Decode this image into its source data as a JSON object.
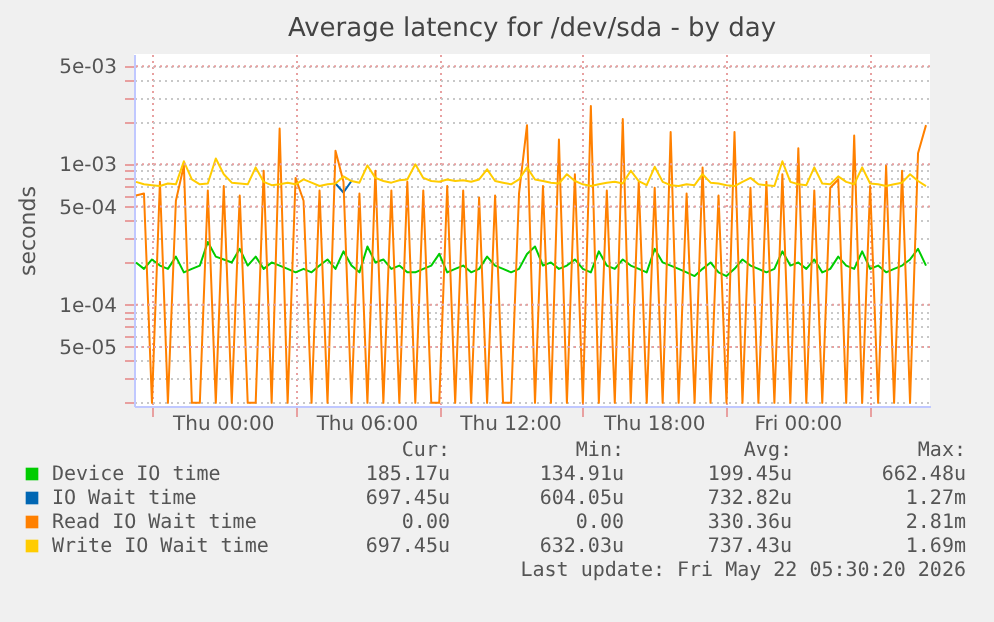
{
  "chart_data": {
    "type": "line",
    "title": "Average latency for /dev/sda - by day",
    "ylabel": "seconds",
    "log": true,
    "grid": true,
    "legend": "bottom",
    "x": [
      "2026-05-20T20:20",
      "2026-05-20T20:40",
      "2026-05-20T21:00",
      "2026-05-20T21:20",
      "2026-05-20T21:40",
      "2026-05-20T22:00",
      "2026-05-20T22:20",
      "2026-05-20T22:40",
      "2026-05-20T23:00",
      "2026-05-20T23:20",
      "2026-05-20T23:40",
      "2026-05-21T00:00",
      "2026-05-21T00:20",
      "2026-05-21T00:40",
      "2026-05-21T01:00",
      "2026-05-21T01:20",
      "2026-05-21T01:40",
      "2026-05-21T02:00",
      "2026-05-21T02:20",
      "2026-05-21T02:40",
      "2026-05-21T03:00",
      "2026-05-21T03:20",
      "2026-05-21T03:40",
      "2026-05-21T04:00",
      "2026-05-21T04:20",
      "2026-05-21T04:40",
      "2026-05-21T05:00",
      "2026-05-21T05:20",
      "2026-05-21T05:40",
      "2026-05-21T06:00",
      "2026-05-21T06:20",
      "2026-05-21T06:40",
      "2026-05-21T07:00",
      "2026-05-21T07:20",
      "2026-05-21T07:40",
      "2026-05-21T08:00",
      "2026-05-21T08:20",
      "2026-05-21T08:40",
      "2026-05-21T09:00",
      "2026-05-21T09:20",
      "2026-05-21T09:40",
      "2026-05-21T10:00",
      "2026-05-21T10:20",
      "2026-05-21T10:40",
      "2026-05-21T11:00",
      "2026-05-21T11:20",
      "2026-05-21T11:40",
      "2026-05-21T12:00",
      "2026-05-21T12:20",
      "2026-05-21T12:40",
      "2026-05-21T13:00",
      "2026-05-21T13:20",
      "2026-05-21T13:40",
      "2026-05-21T14:00",
      "2026-05-21T14:20",
      "2026-05-21T14:40",
      "2026-05-21T15:00",
      "2026-05-21T15:20",
      "2026-05-21T15:40",
      "2026-05-21T16:00",
      "2026-05-21T16:20",
      "2026-05-21T16:40",
      "2026-05-21T17:00",
      "2026-05-21T17:20",
      "2026-05-21T17:40",
      "2026-05-21T18:00",
      "2026-05-21T18:20",
      "2026-05-21T18:40",
      "2026-05-21T19:00",
      "2026-05-21T19:20",
      "2026-05-21T19:40",
      "2026-05-21T20:00",
      "2026-05-21T20:20",
      "2026-05-21T20:40",
      "2026-05-21T21:00",
      "2026-05-21T21:20",
      "2026-05-21T21:40",
      "2026-05-21T22:00",
      "2026-05-21T22:20",
      "2026-05-21T22:40",
      "2026-05-21T23:00",
      "2026-05-21T23:20",
      "2026-05-21T23:40",
      "2026-05-22T00:00",
      "2026-05-22T00:20",
      "2026-05-22T00:40",
      "2026-05-22T01:00",
      "2026-05-22T01:20",
      "2026-05-22T01:40",
      "2026-05-22T02:00",
      "2026-05-22T02:20",
      "2026-05-22T02:40",
      "2026-05-22T03:00",
      "2026-05-22T03:20",
      "2026-05-22T03:40",
      "2026-05-22T04:00",
      "2026-05-22T04:20",
      "2026-05-22T04:40",
      "2026-05-22T05:00",
      "2026-05-22T05:20"
    ],
    "xlim": [
      "2026-05-20T20:15",
      "2026-05-22T05:30"
    ],
    "xticks": [
      {
        "value": "2026-05-20T21:00",
        "label": null
      },
      {
        "value": "2026-05-21T00:00",
        "label": "Thu 00:00"
      },
      {
        "value": "2026-05-21T03:00",
        "label": null
      },
      {
        "value": "2026-05-21T06:00",
        "label": "Thu 06:00"
      },
      {
        "value": "2026-05-21T09:00",
        "label": null
      },
      {
        "value": "2026-05-21T12:00",
        "label": "Thu 12:00"
      },
      {
        "value": "2026-05-21T15:00",
        "label": null
      },
      {
        "value": "2026-05-21T18:00",
        "label": "Thu 18:00"
      },
      {
        "value": "2026-05-21T21:00",
        "label": null
      },
      {
        "value": "2026-05-22T00:00",
        "label": "Fri 00:00"
      },
      {
        "value": "2026-05-22T03:00",
        "label": null
      }
    ],
    "ylim": [
      1.9e-05,
      0.0061
    ],
    "yticks": [
      {
        "value": 2e-05,
        "label": null
      },
      {
        "value": 3e-05,
        "label": null
      },
      {
        "value": 4e-05,
        "label": null
      },
      {
        "value": 5e-05,
        "label": "5e-05"
      },
      {
        "value": 6e-05,
        "label": null
      },
      {
        "value": 7e-05,
        "label": null
      },
      {
        "value": 8e-05,
        "label": null
      },
      {
        "value": 9e-05,
        "label": null
      },
      {
        "value": 0.0001,
        "label": "1e-04"
      },
      {
        "value": 0.0002,
        "label": null
      },
      {
        "value": 0.0003,
        "label": null
      },
      {
        "value": 0.0004,
        "label": null
      },
      {
        "value": 0.0005,
        "label": "5e-04"
      },
      {
        "value": 0.0006,
        "label": null
      },
      {
        "value": 0.0007,
        "label": null
      },
      {
        "value": 0.0008,
        "label": null
      },
      {
        "value": 0.0009,
        "label": null
      },
      {
        "value": 0.001,
        "label": "1e-03"
      },
      {
        "value": 0.002,
        "label": null
      },
      {
        "value": 0.003,
        "label": null
      },
      {
        "value": 0.004,
        "label": null
      },
      {
        "value": 0.005,
        "label": "5e-03"
      }
    ],
    "series": [
      {
        "name": "Device IO time",
        "color": "#00cc00",
        "values": [
          0.0002,
          0.00018,
          0.00021,
          0.00019,
          0.00018,
          0.00022,
          0.00017,
          0.00018,
          0.00019,
          0.00028,
          0.00022,
          0.00021,
          0.0002,
          0.00025,
          0.00019,
          0.00022,
          0.00018,
          0.0002,
          0.00019,
          0.00018,
          0.00017,
          0.00018,
          0.00017,
          0.00019,
          0.00021,
          0.00018,
          0.00024,
          0.00019,
          0.00017,
          0.00026,
          0.0002,
          0.00021,
          0.00018,
          0.00019,
          0.00017,
          0.00017,
          0.00018,
          0.00019,
          0.00023,
          0.00017,
          0.00018,
          0.00019,
          0.00017,
          0.00018,
          0.00022,
          0.00019,
          0.00018,
          0.00017,
          0.00018,
          0.00023,
          0.00026,
          0.00019,
          0.0002,
          0.00018,
          0.00019,
          0.00021,
          0.00018,
          0.00017,
          0.00024,
          0.00019,
          0.00018,
          0.00021,
          0.00019,
          0.00018,
          0.00017,
          0.00025,
          0.0002,
          0.00019,
          0.00018,
          0.00017,
          0.00016,
          0.00018,
          0.0002,
          0.00017,
          0.00016,
          0.00018,
          0.00021,
          0.00019,
          0.00018,
          0.00017,
          0.00018,
          0.00024,
          0.00019,
          0.0002,
          0.00018,
          0.00021,
          0.00017,
          0.00018,
          0.00022,
          0.00019,
          0.00018,
          0.00024,
          0.00018,
          0.00019,
          0.00017,
          0.00018,
          0.00019,
          0.00021,
          0.00025,
          0.00019
        ]
      },
      {
        "name": "IO Wait time",
        "color": "#0066b3",
        "values": [
          null,
          null,
          null,
          null,
          null,
          null,
          null,
          null,
          null,
          null,
          null,
          null,
          null,
          null,
          null,
          null,
          null,
          null,
          null,
          null,
          null,
          null,
          null,
          null,
          null,
          0.00073,
          0.00063,
          0.00076,
          null,
          null,
          null,
          null,
          null,
          null,
          null,
          null,
          null,
          null,
          null,
          null,
          null,
          null,
          null,
          null,
          null,
          null,
          null,
          null,
          null,
          null,
          null,
          null,
          null,
          null,
          null,
          null,
          null,
          null,
          null,
          null,
          null,
          null,
          null,
          null,
          null,
          null,
          null,
          null,
          null,
          null,
          null,
          null,
          null,
          null,
          null,
          null,
          null,
          null,
          null,
          null,
          null,
          null,
          null,
          null,
          null,
          null,
          null,
          null,
          null,
          null,
          null,
          null,
          null,
          null,
          null,
          null,
          null,
          null,
          null,
          null
        ]
      },
      {
        "name": "Read IO Wait time",
        "color": "#ff8000",
        "values": [
          0.0006,
          0.00062,
          2e-05,
          0.00075,
          2e-05,
          0.00055,
          0.00098,
          2e-05,
          2e-05,
          0.00065,
          2e-05,
          0.0007,
          2e-05,
          0.0006,
          2e-05,
          2e-05,
          0.0009,
          2e-05,
          0.0018,
          2e-05,
          0.0008,
          0.00055,
          2e-05,
          0.00065,
          2e-05,
          0.00125,
          0.00075,
          2e-05,
          0.00062,
          2e-05,
          0.0009,
          2e-05,
          0.00065,
          2e-05,
          0.00075,
          2e-05,
          0.00065,
          2e-05,
          2e-05,
          0.0007,
          2e-05,
          0.00065,
          2e-05,
          0.00058,
          2e-05,
          0.0006,
          2e-05,
          2e-05,
          0.00062,
          0.0019,
          2e-05,
          0.0007,
          2e-05,
          0.0015,
          2e-05,
          0.00085,
          2e-05,
          0.0026,
          2e-05,
          0.00065,
          2e-05,
          0.0021,
          2e-05,
          0.00075,
          2e-05,
          0.00068,
          2e-05,
          0.0017,
          2e-05,
          0.00062,
          2e-05,
          0.00095,
          2e-05,
          0.0006,
          2e-05,
          0.0017,
          2e-05,
          0.00068,
          2e-05,
          0.00075,
          2e-05,
          0.00085,
          2e-05,
          0.0013,
          2e-05,
          0.00065,
          2e-05,
          0.00068,
          0.00078,
          2e-05,
          0.0016,
          2e-05,
          0.0007,
          2e-05,
          0.00098,
          2e-05,
          0.0009,
          2e-05,
          0.0012,
          0.0019
        ]
      },
      {
        "name": "Write IO Wait time",
        "color": "#ffcc00",
        "values": [
          0.00075,
          0.00072,
          0.00071,
          0.0007,
          0.00073,
          0.00072,
          0.00105,
          0.00078,
          0.00072,
          0.00073,
          0.0011,
          0.00085,
          0.00074,
          0.00073,
          0.00072,
          0.00095,
          0.00075,
          0.00071,
          0.00072,
          0.00074,
          0.00072,
          0.00078,
          0.00074,
          0.0007,
          0.00072,
          0.00073,
          0.00082,
          0.00076,
          0.00074,
          0.00098,
          0.0008,
          0.00076,
          0.00074,
          0.00077,
          0.00078,
          0.001,
          0.0008,
          0.00076,
          0.00075,
          0.00078,
          0.00076,
          0.00077,
          0.00075,
          0.00078,
          0.00092,
          0.00076,
          0.00074,
          0.00072,
          0.00078,
          0.00095,
          0.00078,
          0.00076,
          0.00074,
          0.00073,
          0.00085,
          0.00076,
          0.00072,
          0.0007,
          0.00072,
          0.00074,
          0.00075,
          0.00073,
          0.0009,
          0.00076,
          0.00071,
          0.00096,
          0.00075,
          0.00071,
          0.0007,
          0.00072,
          0.00071,
          0.00085,
          0.00074,
          0.00073,
          0.00071,
          0.0007,
          0.00075,
          0.0008,
          0.00072,
          0.00071,
          0.0007,
          0.00105,
          0.00075,
          0.00072,
          0.00071,
          0.00095,
          0.00073,
          0.00072,
          0.00082,
          0.00075,
          0.00072,
          0.00095,
          0.00073,
          0.00072,
          0.0007,
          0.00072,
          0.00074,
          0.00085,
          0.00076,
          0.0007
        ]
      }
    ],
    "annotations": [
      "Cur:",
      "Min:",
      "Avg:",
      "Max:",
      "185.17u",
      "134.91u",
      "199.45u",
      "662.48u",
      "697.45u",
      "604.05u",
      "732.82u",
      "1.27m",
      "0.00",
      "0.00",
      "330.36u",
      "2.81m",
      "697.45u",
      "632.03u",
      "737.43u",
      "1.69m",
      "Last update: Fri May 22 05:30:20 2026"
    ]
  }
}
